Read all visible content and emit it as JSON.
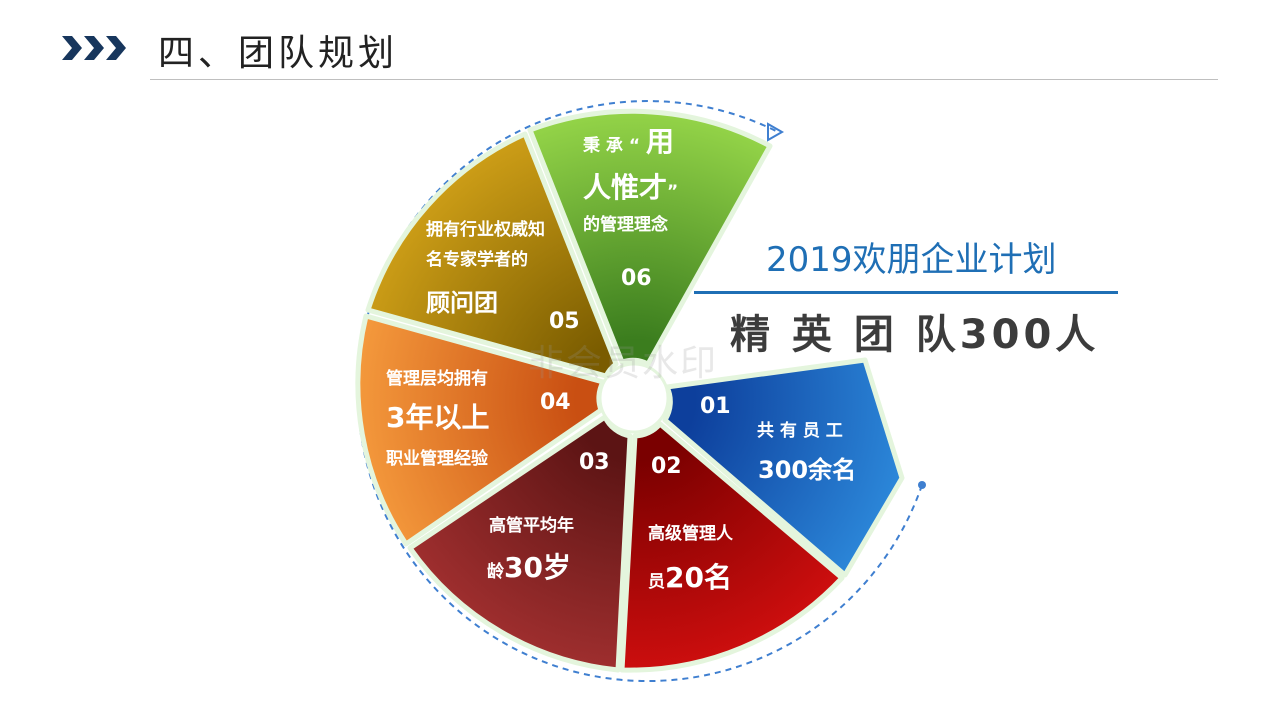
{
  "header": {
    "title": "四、团队规划"
  },
  "plan": {
    "title": "2019欢朋企业计划",
    "headline": "精 英 团 队300人"
  },
  "watermark": "非会员水印",
  "segments": [
    {
      "number": "01",
      "line1": "共 有 员 工",
      "line2": "300余名",
      "color": "#1565c0"
    },
    {
      "number": "02",
      "line1": "高级管理人",
      "line2_small": "员",
      "line2_large": "20名",
      "color": "#c00000"
    },
    {
      "number": "03",
      "line1": "高管平均年",
      "line2_small": "龄",
      "line2_large": "30岁",
      "color": "#8b2525"
    },
    {
      "number": "04",
      "line1": "管理层均拥有",
      "line2": "3年以上",
      "line3": "职业管理经验",
      "color": "#ec7a24"
    },
    {
      "number": "05",
      "line1": "拥有行业权威知",
      "line2": "名专家学者的",
      "line3": "顾问团",
      "color": "#b58b07"
    },
    {
      "number": "06",
      "line1_small": "秉 承 “",
      "line1_large": "用",
      "line2": "人惟才",
      "line2_quote": "”",
      "line3": "的管理理念",
      "color": "#78b83a"
    }
  ]
}
